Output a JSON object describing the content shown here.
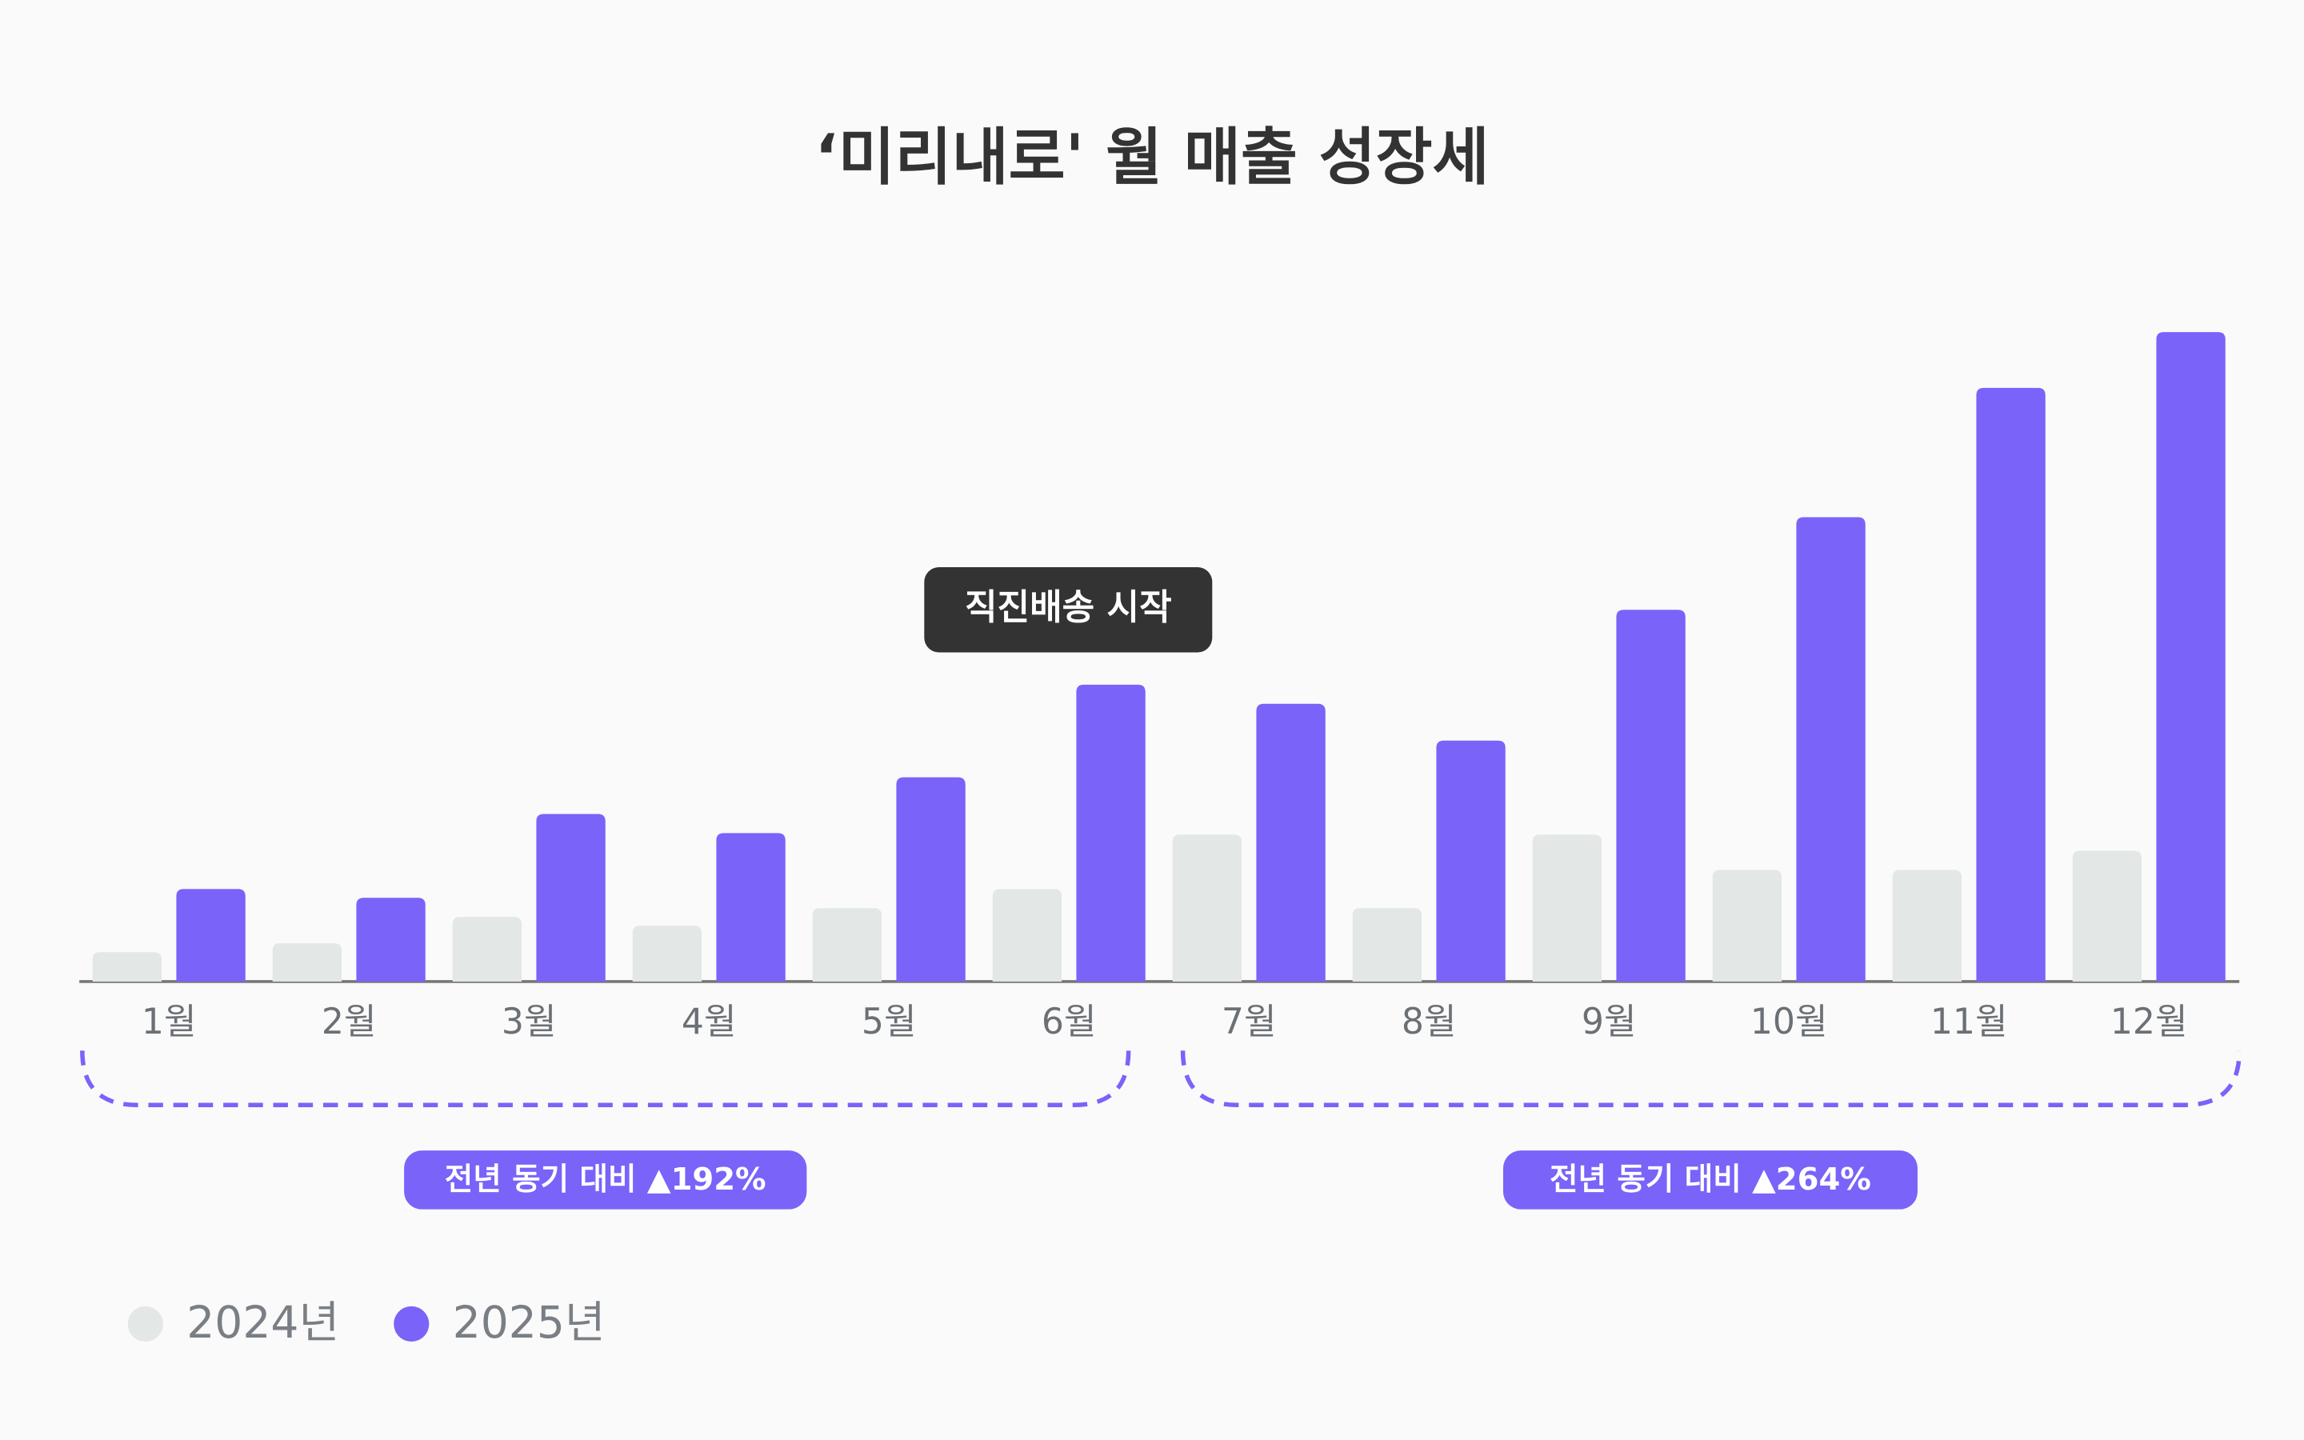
{
  "chart_data": {
    "type": "bar",
    "title": "‘미리내로' 월 매출 성장세",
    "categories": [
      "1월",
      "2월",
      "3월",
      "4월",
      "5월",
      "6월",
      "7월",
      "8월",
      "9월",
      "10월",
      "11월",
      "12월"
    ],
    "series": [
      {
        "name": "2024년",
        "color": "#e3e7e6",
        "values": [
          20,
          26,
          44,
          38,
          50,
          63,
          100,
          50,
          100,
          76,
          76,
          89
        ]
      },
      {
        "name": "2025년",
        "color": "#7963f9",
        "values": [
          63,
          57,
          114,
          101,
          139,
          202,
          189,
          164,
          253,
          316,
          404,
          442
        ]
      }
    ],
    "annotations": [
      "직진배송 시작"
    ],
    "comparisons": [
      "전년 동기 대비 ▲192%",
      "전년 동기 대비 ▲264%"
    ]
  }
}
